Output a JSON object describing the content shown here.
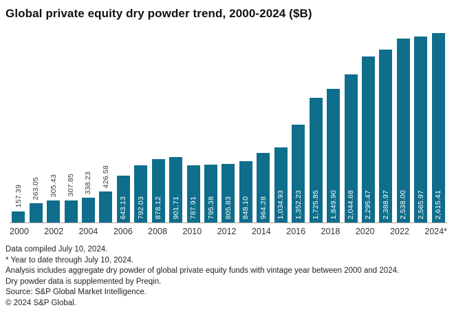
{
  "chart_data": {
    "type": "bar",
    "title": "Global private equity dry powder trend, 2000-2024 ($B)",
    "categories": [
      "2000",
      "2001",
      "2002",
      "2003",
      "2004",
      "2005",
      "2006",
      "2007",
      "2008",
      "2009",
      "2010",
      "2011",
      "2012",
      "2013",
      "2014",
      "2015",
      "2016",
      "2017",
      "2018",
      "2019",
      "2020",
      "2021",
      "2022",
      "2023",
      "2024"
    ],
    "values": [
      157.39,
      263.05,
      305.43,
      307.85,
      338.23,
      426.58,
      643.13,
      792.03,
      878.12,
      901.71,
      787.91,
      795.38,
      805.83,
      848.1,
      964.28,
      1034.93,
      1352.23,
      1725.85,
      1849.9,
      2044.68,
      2295.47,
      2388.97,
      2538.0,
      2565.97,
      2615.41
    ],
    "labels": [
      "157.39",
      "263.05",
      "305.43",
      "307.85",
      "338.23",
      "426.58",
      "643.13",
      "792.03",
      "878.12",
      "901.71",
      "787.91",
      "795.38",
      "805.83",
      "848.10",
      "964.28",
      "1,034.93",
      "1,352.23",
      "1,725.85",
      "1,849.90",
      "2,044.68",
      "2,295.47",
      "2,388.97",
      "2,538.00",
      "2,565.97",
      "2,615.41"
    ],
    "tick_labels": [
      "2000",
      "2002",
      "2004",
      "2006",
      "2008",
      "2010",
      "2012",
      "2014",
      "2016",
      "2018",
      "2020",
      "2022",
      "2024*"
    ],
    "xlabel": "",
    "ylabel": "",
    "ylim": [
      0,
      2615.41
    ],
    "grid": false,
    "legend": "none"
  },
  "colors": {
    "bar": "#0e6e8b",
    "axis_line": "#a3a3a3",
    "label_inside": "#ffffff",
    "label_outside": "#3a3a3a"
  },
  "footnotes": [
    "Data compiled July 10, 2024.",
    "* Year to date through July 10, 2024.",
    "Analysis includes aggregate dry powder of global private equity funds with vintage year between 2000 and 2024.",
    "Dry powder data is supplemented by Preqin.",
    "Source: S&P Global Market Intelligence.",
    "© 2024 S&P Global."
  ]
}
